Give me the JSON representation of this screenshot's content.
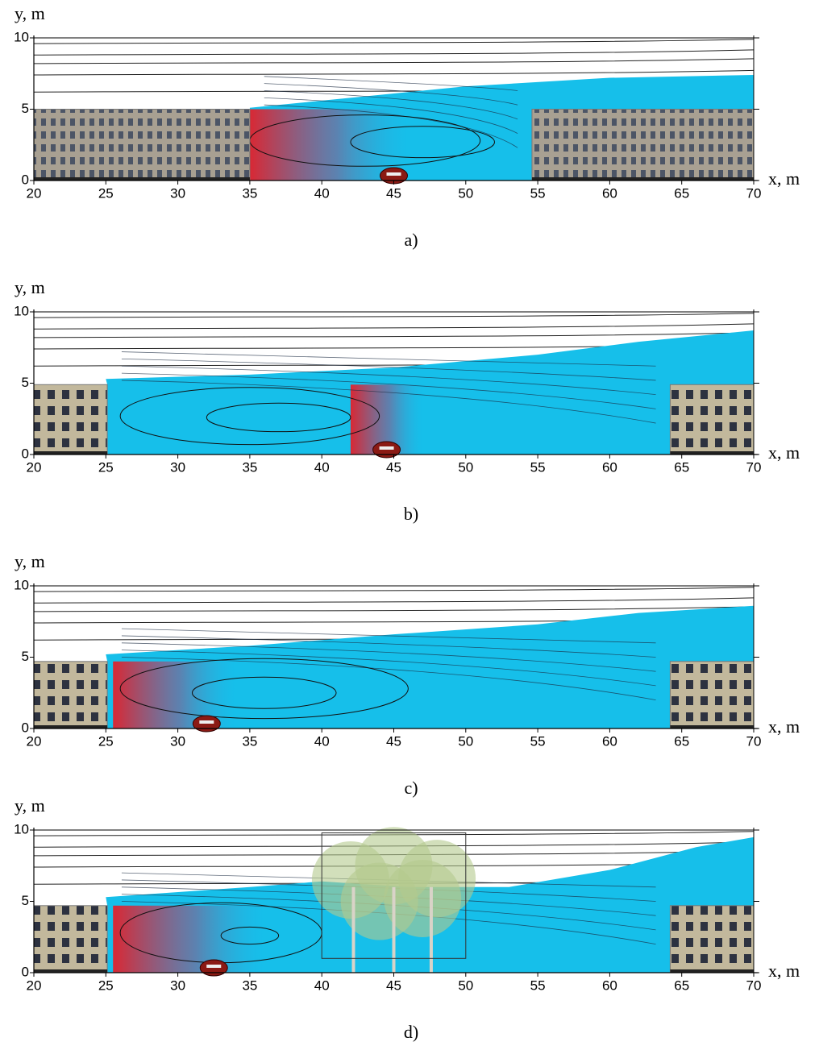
{
  "chart_data": [
    {
      "type": "contour",
      "caption": "a)",
      "x_label": "x, m",
      "y_label": "y, m",
      "xlim": [
        20,
        70
      ],
      "ylim": [
        0,
        10
      ],
      "xticks": [
        20,
        25,
        30,
        35,
        40,
        45,
        50,
        55,
        60,
        65,
        70
      ],
      "yticks": [
        0,
        5,
        10
      ]
    },
    {
      "type": "contour",
      "caption": "b)",
      "x_label": "x, m",
      "y_label": "y, m",
      "xlim": [
        20,
        70
      ],
      "ylim": [
        0,
        10
      ],
      "xticks": [
        20,
        25,
        30,
        35,
        40,
        45,
        50,
        55,
        60,
        65,
        70
      ],
      "yticks": [
        0,
        5,
        10
      ]
    },
    {
      "type": "contour",
      "caption": "c)",
      "x_label": "x, m",
      "y_label": "y, m",
      "xlim": [
        20,
        70
      ],
      "ylim": [
        0,
        10
      ],
      "xticks": [
        20,
        25,
        30,
        35,
        40,
        45,
        50,
        55,
        60,
        65,
        70
      ],
      "yticks": [
        0,
        5,
        10
      ]
    },
    {
      "type": "contour",
      "caption": "d)",
      "x_label": "x, m",
      "y_label": "y, m",
      "xlim": [
        20,
        70
      ],
      "ylim": [
        0,
        10
      ],
      "xticks": [
        20,
        25,
        30,
        35,
        40,
        45,
        50,
        55,
        60,
        65,
        70
      ],
      "yticks": [
        0,
        5,
        10
      ]
    }
  ]
}
